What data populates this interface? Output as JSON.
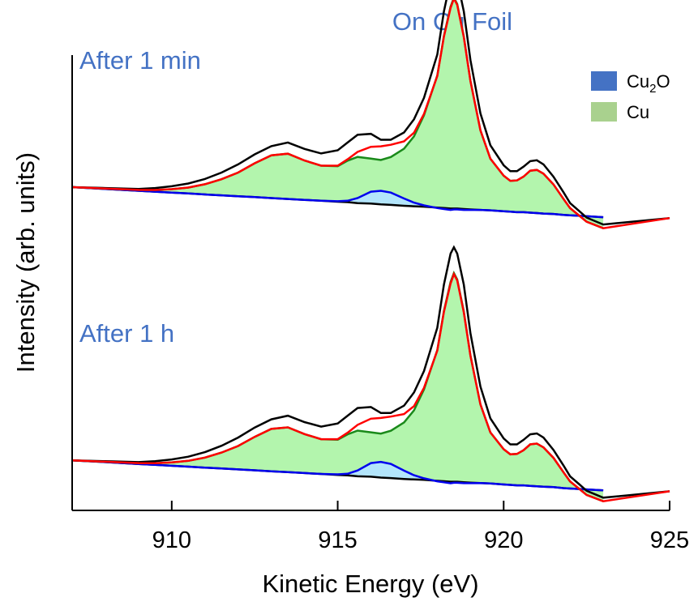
{
  "chart_data": {
    "type": "area",
    "title": "On Cu Foil",
    "xlabel": "Kinetic Energy (eV)",
    "ylabel": "Intensity (arb. units)",
    "xlim": [
      907,
      925
    ],
    "xticks": [
      910,
      915,
      920,
      925
    ],
    "ylim": [
      0,
      1
    ],
    "yticks": [],
    "grid": false,
    "legend_position": "top-right",
    "legend": [
      {
        "label": "Cu",
        "sub": "2",
        "label_after": "O",
        "color": "#4472c4"
      },
      {
        "label": "Cu",
        "sub": "",
        "label_after": "",
        "color": "#a9d18e"
      }
    ],
    "colors": {
      "title": "#4472c4",
      "panel_label": "#4472c4",
      "raw": "#000000",
      "envelope": "#ff0000",
      "cu_line": "#1a8a1a",
      "cu_fill": "#b3f5ad",
      "cu2o_line": "#0000ee",
      "cu2o_fill": "#b3e5fb",
      "baseline": "#000000"
    },
    "panels": [
      {
        "label": "After 1 min",
        "offset": 0.71,
        "black_scale": 1.0,
        "green_scale": 0.93,
        "blue_scale": 1.0
      },
      {
        "label": "After 1 h",
        "offset": 0.11,
        "black_scale": 1.0,
        "green_scale": 0.92,
        "blue_scale": 1.15
      }
    ],
    "curves": {
      "x": [
        907,
        908,
        909,
        909.5,
        910,
        910.5,
        911,
        911.5,
        912,
        912.5,
        913,
        913.5,
        914,
        914.5,
        915,
        915.3,
        915.6,
        916,
        916.3,
        916.6,
        917,
        917.3,
        917.6,
        918,
        918.2,
        918.4,
        918.5,
        918.6,
        918.8,
        919,
        919.3,
        919.6,
        920,
        920.2,
        920.4,
        920.6,
        920.8,
        921,
        921.2,
        921.5,
        921.8,
        922,
        922.3,
        922.5,
        923
      ],
      "baseline": [
        0,
        0.004,
        0.008,
        0.01,
        0.012,
        0.014,
        0.016,
        0.018,
        0.02,
        0.022,
        0.024,
        0.026,
        0.028,
        0.03,
        0.032,
        0.033,
        0.035,
        0.036,
        0.038,
        0.039,
        0.041,
        0.042,
        0.043,
        0.045,
        0.046,
        0.047,
        0.047,
        0.047,
        0.048,
        0.049,
        0.05,
        0.051,
        0.053,
        0.054,
        0.055,
        0.055,
        0.056,
        0.057,
        0.058,
        0.059,
        0.061,
        0.062,
        0.063,
        0.064,
        0.066
      ],
      "cu2o": [
        0,
        0.004,
        0.008,
        0.01,
        0.012,
        0.014,
        0.016,
        0.018,
        0.02,
        0.022,
        0.024,
        0.026,
        0.028,
        0.03,
        0.033,
        0.036,
        0.046,
        0.062,
        0.068,
        0.066,
        0.057,
        0.05,
        0.046,
        0.044,
        0.044,
        0.044,
        0.045,
        0.045,
        0.046,
        0.048,
        0.05,
        0.051,
        0.053,
        0.054,
        0.055,
        0.055,
        0.056,
        0.057,
        0.058,
        0.059,
        0.061,
        0.062,
        0.063,
        0.064,
        0.066
      ],
      "cu": [
        0,
        0.005,
        0.01,
        0.014,
        0.02,
        0.028,
        0.04,
        0.056,
        0.076,
        0.102,
        0.125,
        0.133,
        0.121,
        0.113,
        0.116,
        0.131,
        0.144,
        0.142,
        0.143,
        0.152,
        0.176,
        0.207,
        0.259,
        0.357,
        0.453,
        0.524,
        0.545,
        0.53,
        0.456,
        0.353,
        0.238,
        0.173,
        0.137,
        0.127,
        0.13,
        0.139,
        0.155,
        0.159,
        0.152,
        0.129,
        0.099,
        0.079,
        0.062,
        0.051,
        0.04
      ],
      "raw": [
        0,
        0.006,
        0.012,
        0.018,
        0.026,
        0.036,
        0.05,
        0.068,
        0.09,
        0.116,
        0.138,
        0.15,
        0.14,
        0.134,
        0.145,
        0.164,
        0.185,
        0.189,
        0.18,
        0.182,
        0.202,
        0.233,
        0.282,
        0.381,
        0.478,
        0.548,
        0.562,
        0.548,
        0.482,
        0.377,
        0.262,
        0.194,
        0.154,
        0.143,
        0.145,
        0.155,
        0.169,
        0.173,
        0.166,
        0.141,
        0.111,
        0.089,
        0.072,
        0.061,
        0.05
      ]
    }
  }
}
